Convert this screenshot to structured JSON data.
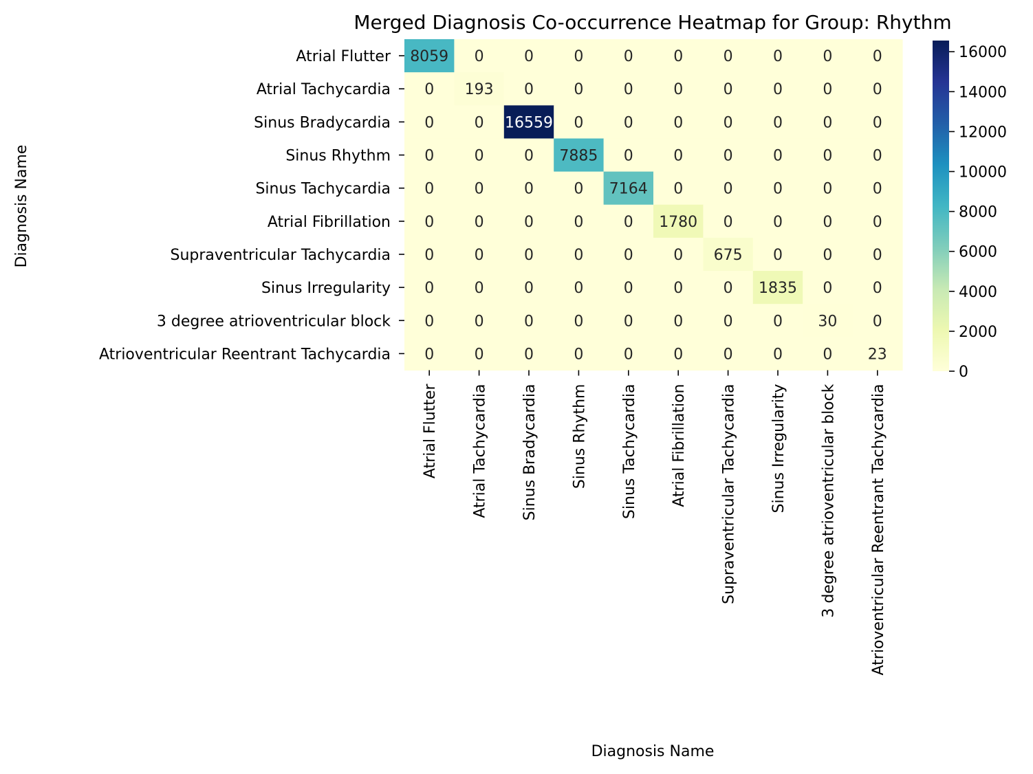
{
  "chart_data": {
    "type": "heatmap",
    "title": "Merged Diagnosis Co-occurrence Heatmap for Group: Rhythm",
    "xlabel": "Diagnosis Name",
    "ylabel": "Diagnosis Name",
    "categories": [
      "Atrial Flutter",
      "Atrial Tachycardia",
      "Sinus Bradycardia",
      "Sinus Rhythm",
      "Sinus Tachycardia",
      "Atrial Fibrillation",
      "Supraventricular Tachycardia",
      "Sinus Irregularity",
      "3 degree atrioventricular block",
      "Atrioventricular Reentrant Tachycardia"
    ],
    "values": [
      [
        8059,
        0,
        0,
        0,
        0,
        0,
        0,
        0,
        0,
        0
      ],
      [
        0,
        193,
        0,
        0,
        0,
        0,
        0,
        0,
        0,
        0
      ],
      [
        0,
        0,
        16559,
        0,
        0,
        0,
        0,
        0,
        0,
        0
      ],
      [
        0,
        0,
        0,
        7885,
        0,
        0,
        0,
        0,
        0,
        0
      ],
      [
        0,
        0,
        0,
        0,
        7164,
        0,
        0,
        0,
        0,
        0
      ],
      [
        0,
        0,
        0,
        0,
        0,
        1780,
        0,
        0,
        0,
        0
      ],
      [
        0,
        0,
        0,
        0,
        0,
        0,
        675,
        0,
        0,
        0
      ],
      [
        0,
        0,
        0,
        0,
        0,
        0,
        0,
        1835,
        0,
        0
      ],
      [
        0,
        0,
        0,
        0,
        0,
        0,
        0,
        0,
        30,
        0
      ],
      [
        0,
        0,
        0,
        0,
        0,
        0,
        0,
        0,
        0,
        23
      ]
    ],
    "colormap": "YlGnBu",
    "color_range": [
      0,
      16559
    ],
    "colorbar_ticks": [
      0,
      2000,
      4000,
      6000,
      8000,
      10000,
      12000,
      14000,
      16000
    ],
    "legend": "colorbar right"
  }
}
